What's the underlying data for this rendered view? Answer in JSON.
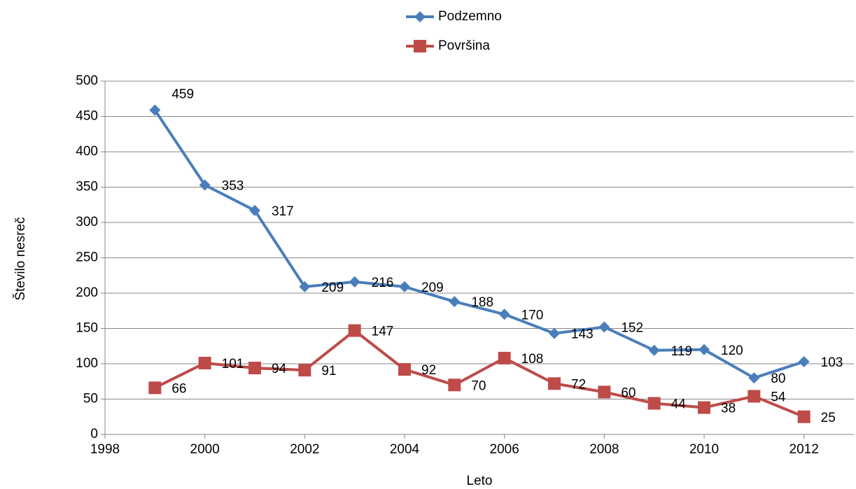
{
  "chart_data": {
    "type": "line",
    "x_label": "Leto",
    "y_label": "Število nesreč",
    "x": [
      1999,
      2000,
      2001,
      2002,
      2003,
      2004,
      2005,
      2006,
      2007,
      2008,
      2009,
      2010,
      2011,
      2012
    ],
    "series": [
      {
        "name": "Podzemno",
        "color": "#4a7ebb",
        "marker": "diamond",
        "values": [
          459,
          353,
          317,
          209,
          216,
          209,
          188,
          170,
          143,
          152,
          119,
          120,
          80,
          103
        ]
      },
      {
        "name": "Površina",
        "color": "#be4b48",
        "marker": "square",
        "values": [
          66,
          101,
          94,
          91,
          147,
          92,
          70,
          108,
          72,
          60,
          44,
          38,
          54,
          25
        ]
      }
    ],
    "xlim": [
      1998,
      2013
    ],
    "xticks": [
      1998,
      2000,
      2002,
      2004,
      2006,
      2008,
      2010,
      2012
    ],
    "ylim": [
      0,
      500
    ],
    "yticks": [
      0,
      50,
      100,
      150,
      200,
      250,
      300,
      350,
      400,
      450,
      500
    ],
    "grid": true,
    "legend": "top"
  }
}
